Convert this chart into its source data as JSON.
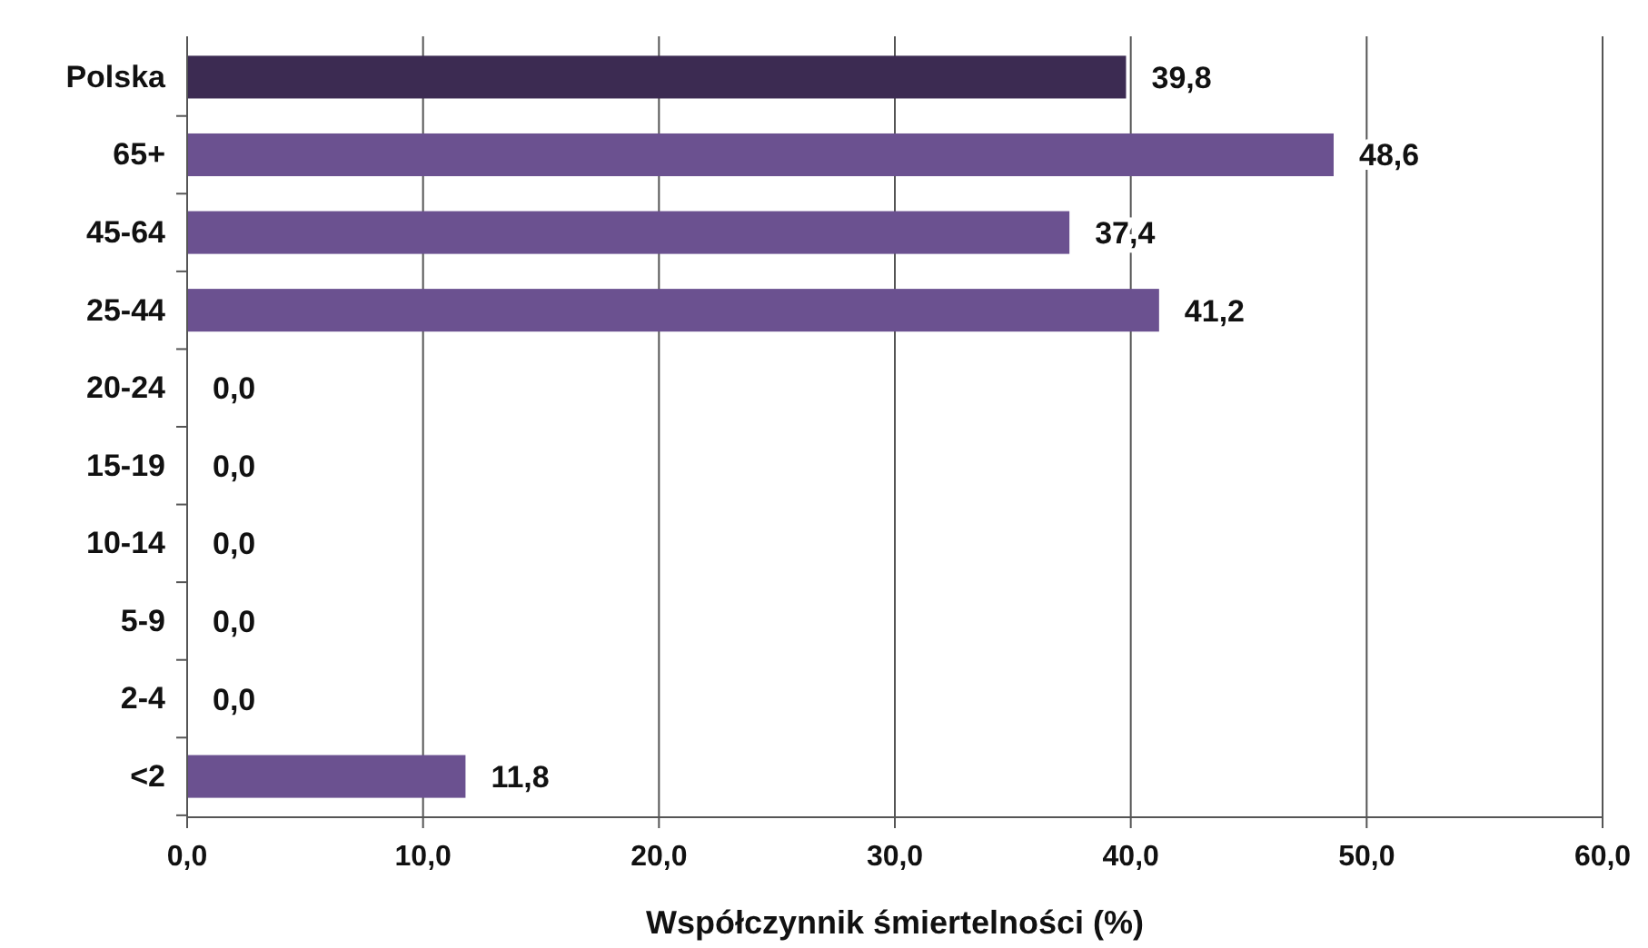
{
  "chart_data": {
    "type": "bar",
    "orientation": "horizontal",
    "xlabel": "Współczynnik śmiertelności  (%)",
    "categories": [
      "Polska",
      "65+",
      "45-64",
      "25-44",
      "20-24",
      "15-19",
      "10-14",
      "5-9",
      "2-4",
      "<2"
    ],
    "values": [
      39.8,
      48.6,
      37.4,
      41.2,
      0,
      0,
      0,
      0,
      0,
      11.8
    ],
    "colors": [
      "#3c2b52",
      "#6b5190",
      "#6b5190",
      "#6b5190",
      "#6b5190",
      "#6b5190",
      "#6b5190",
      "#6b5190",
      "#6b5190",
      "#6b5190"
    ],
    "value_labels": [
      "39,8",
      "48,6",
      "37,4",
      "41,2",
      "0,0",
      "0,0",
      "0,0",
      "0,0",
      "0,0",
      "11,8"
    ],
    "xlim": [
      0,
      60
    ],
    "xticks": [
      {
        "value": 0,
        "label": "0,0"
      },
      {
        "value": 10,
        "label": "10,0"
      },
      {
        "value": 20,
        "label": "20,0"
      },
      {
        "value": 30,
        "label": "30,0"
      },
      {
        "value": 40,
        "label": "40,0"
      },
      {
        "value": 50,
        "label": "50,0"
      },
      {
        "value": 60,
        "label": "60,0"
      }
    ],
    "grid": "x"
  }
}
